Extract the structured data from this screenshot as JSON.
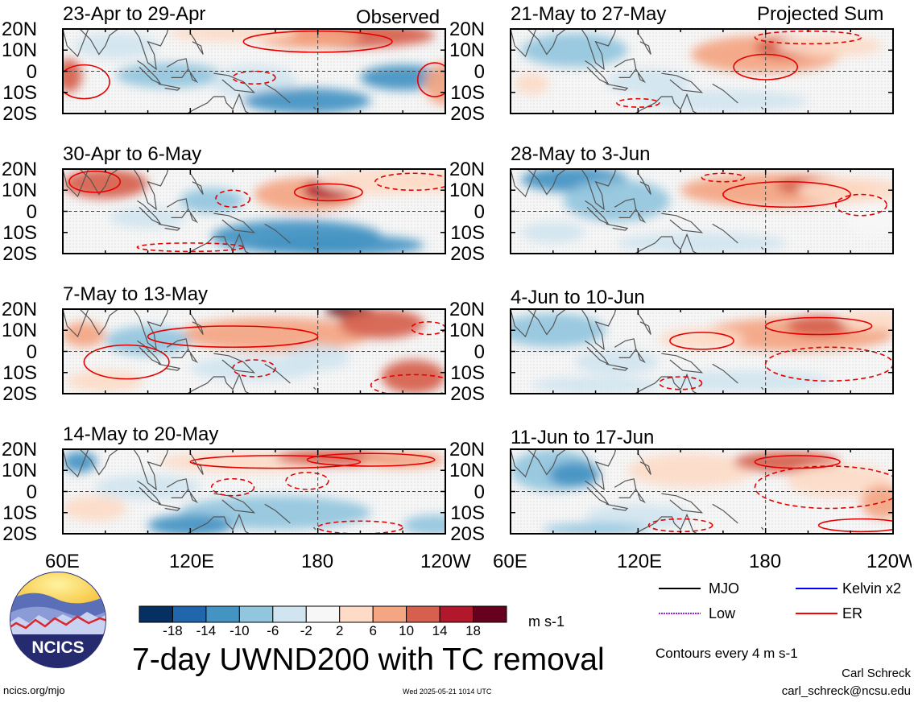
{
  "panel_titles": {
    "p0": "23-Apr to 29-Apr",
    "p1": "30-Apr to 6-May",
    "p2": "7-May to 13-May",
    "p3": "14-May to 20-May",
    "p4": "21-May to 27-May",
    "p5": "28-May to 3-Jun",
    "p6": "4-Jun to 10-Jun",
    "p7": "11-Jun to 17-Jun"
  },
  "column_tags": {
    "left": "Observed",
    "right": "Projected Sum"
  },
  "lat_labels": [
    "20N",
    "10N",
    "0",
    "10S",
    "20S"
  ],
  "lon_labels": [
    "60E",
    "120E",
    "180",
    "120W"
  ],
  "colorbar": {
    "labels": [
      "-18",
      "-14",
      "-10",
      "-6",
      "-2",
      "2",
      "6",
      "10",
      "14",
      "18"
    ],
    "colors": [
      "#053061",
      "#2166ac",
      "#4393c3",
      "#92c5de",
      "#d1e5f0",
      "#f7f7f7",
      "#fddbc7",
      "#f4a582",
      "#d6604d",
      "#b2182b",
      "#67001f"
    ],
    "units": "m s-1"
  },
  "main_title": "7-day UWND200 with TC removal",
  "legend": [
    {
      "label": "MJO",
      "color": "#000000"
    },
    {
      "label": "Kelvin x2",
      "color": "#0000ff"
    },
    {
      "label": "Low",
      "color": "#a020f0"
    },
    {
      "label": "ER",
      "color": "#ff0000"
    }
  ],
  "contour_note": "Contours every 4 m s-1",
  "author": "Carl Schreck",
  "email": "carl_schreck@ncsu.edu",
  "site": "ncics.org/mjo",
  "timestamp": "Wed 2025-05-21 1014 UTC",
  "logo_text": "NCICS"
}
